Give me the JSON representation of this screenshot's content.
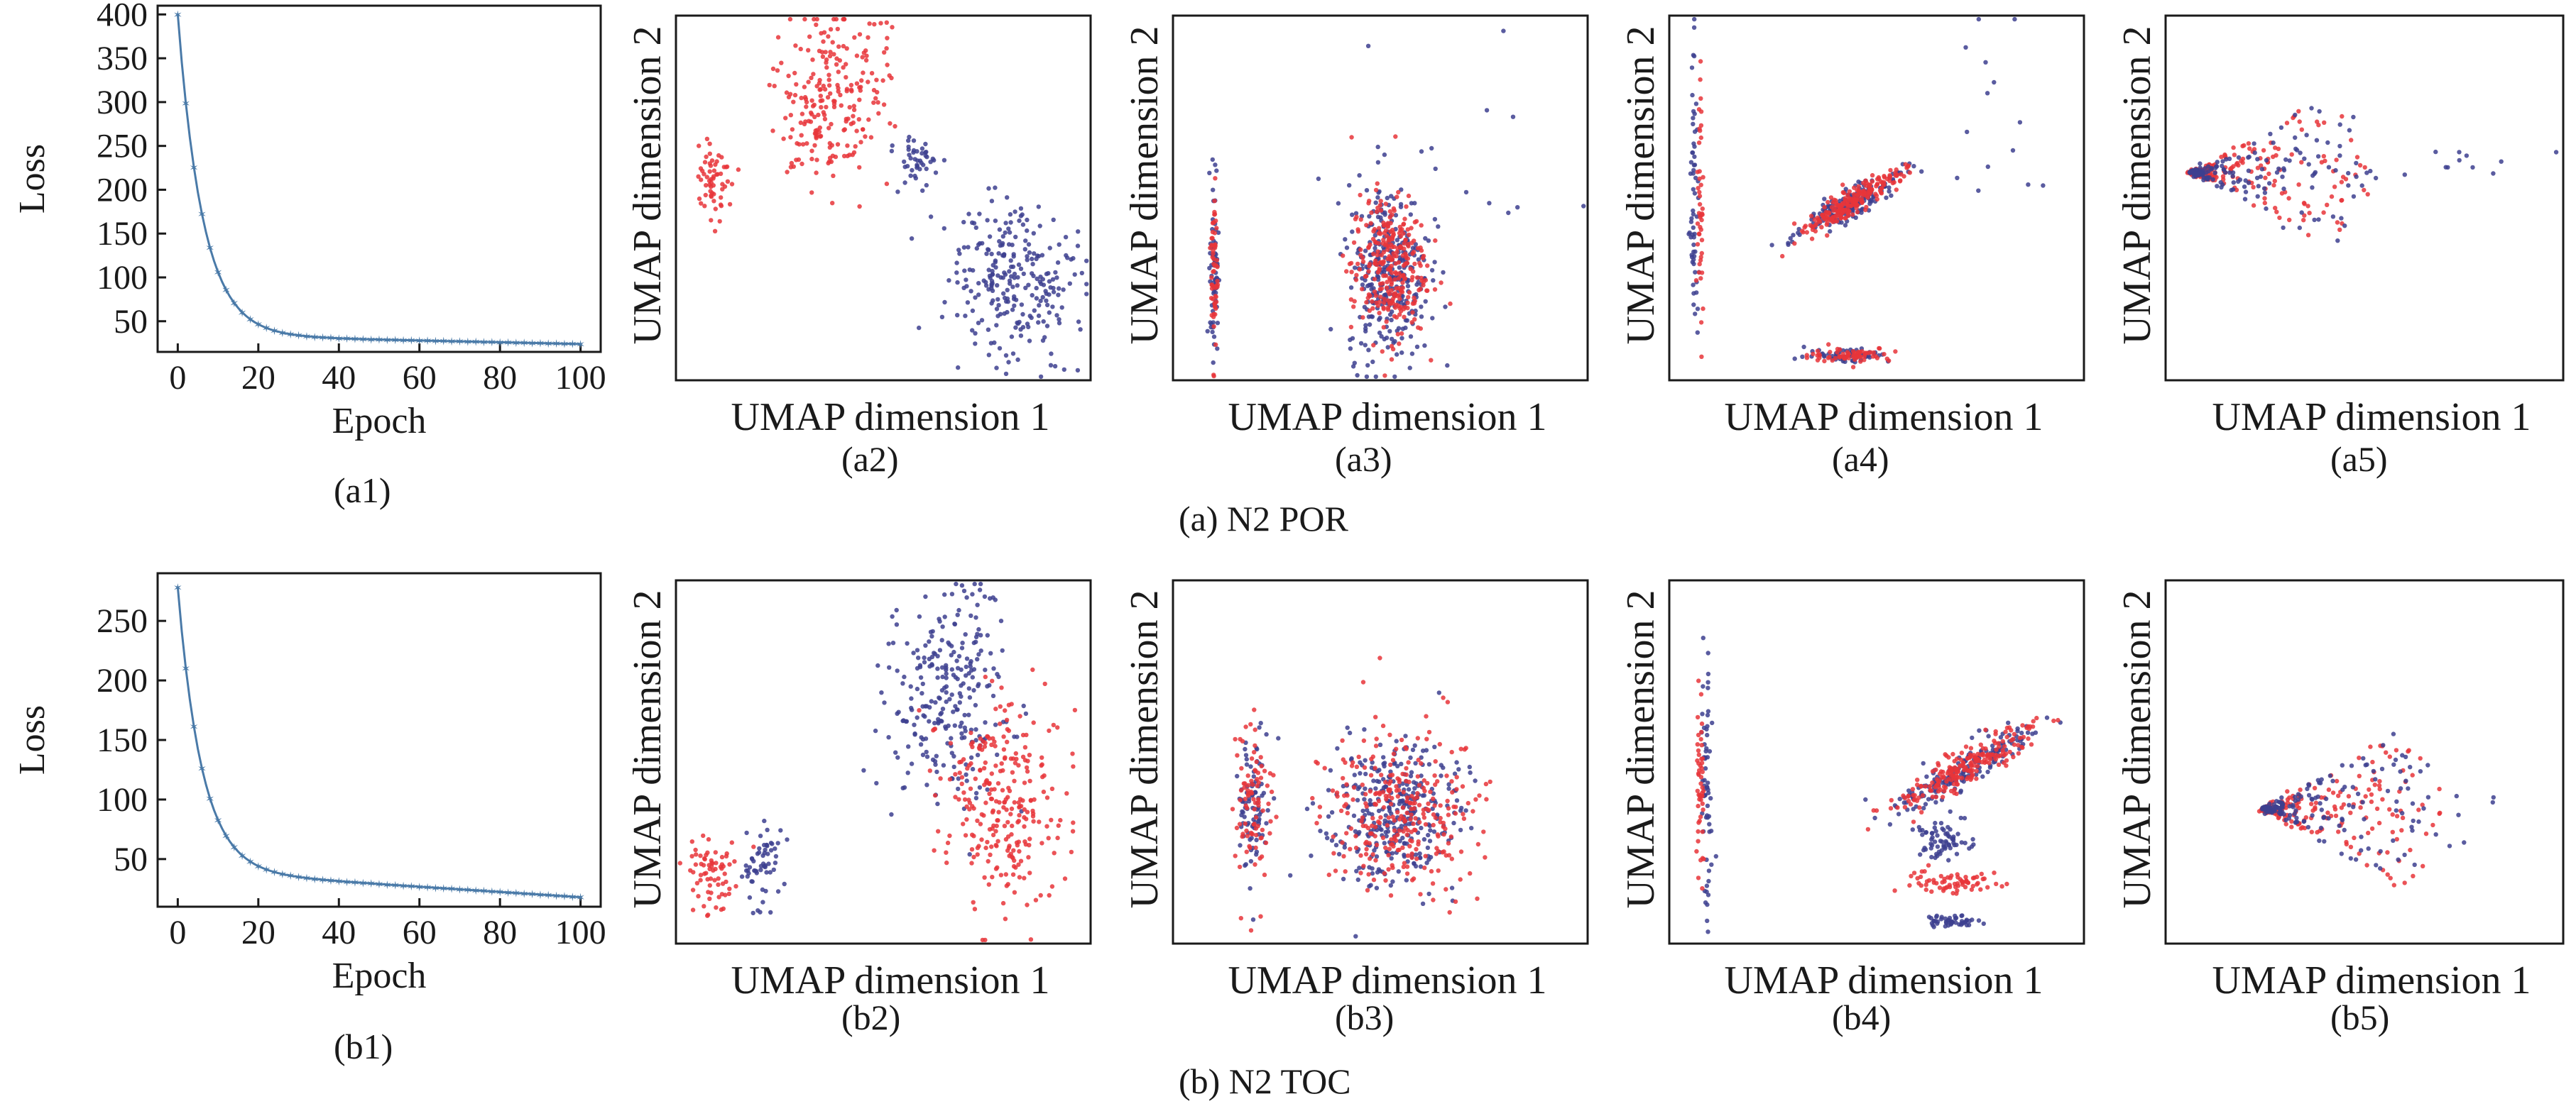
{
  "colors": {
    "loss_line": "#4a7aa8",
    "cluster_red": "#e8353a",
    "cluster_blue": "#3d3f8f",
    "axes": "#1a1a1a"
  },
  "captions": {
    "row_a": "(a) N2 POR",
    "row_b": "(b) N2 TOC",
    "a1": "(a1)",
    "a2": "(a2)",
    "a3": "(a3)",
    "a4": "(a4)",
    "a5": "(a5)",
    "b1": "(b1)",
    "b2": "(b2)",
    "b3": "(b3)",
    "b4": "(b4)",
    "b5": "(b5)"
  },
  "chart_data": [
    {
      "id": "a1",
      "type": "line",
      "xlabel": "Epoch",
      "ylabel": "Loss",
      "xlim": [
        -5,
        105
      ],
      "ylim": [
        15,
        410
      ],
      "xticks": [
        0,
        20,
        40,
        60,
        80,
        100
      ],
      "yticks": [
        50,
        100,
        150,
        200,
        250,
        300,
        350,
        400
      ],
      "loss_model": {
        "start": 400,
        "floor": 34,
        "decay": 6.2,
        "slope": 0.1,
        "epochs": 100
      },
      "marker": "star",
      "legend": "none"
    },
    {
      "id": "b1",
      "type": "line",
      "xlabel": "Epoch",
      "ylabel": "Loss",
      "xlim": [
        -5,
        105
      ],
      "ylim": [
        10,
        290
      ],
      "xticks": [
        0,
        20,
        40,
        60,
        80,
        100
      ],
      "yticks": [
        50,
        100,
        150,
        200,
        250
      ],
      "loss_model": {
        "start": 278,
        "floor": 40,
        "decay": 6.0,
        "slope": 0.22,
        "epochs": 100
      },
      "marker": "star",
      "legend": "none"
    },
    {
      "id": "a2",
      "type": "scatter",
      "xlabel": "UMAP dimension 1",
      "ylabel": "UMAP dimension 2",
      "ticks": "none",
      "clusters": [
        {
          "color": "red",
          "n": 60,
          "cx": 0.09,
          "cy": 0.54,
          "sx": 0.02,
          "sy": 0.05,
          "shape": "gauss"
        },
        {
          "color": "red",
          "n": 230,
          "cx": 0.37,
          "cy": 0.78,
          "sx": 0.07,
          "sy": 0.12,
          "shape": "gauss"
        },
        {
          "color": "blue",
          "n": 45,
          "cx": 0.58,
          "cy": 0.59,
          "sx": 0.025,
          "sy": 0.04,
          "shape": "gauss"
        },
        {
          "color": "blue",
          "n": 260,
          "cx": 0.82,
          "cy": 0.27,
          "sx": 0.08,
          "sy": 0.1,
          "shape": "gauss"
        }
      ]
    },
    {
      "id": "a3",
      "type": "scatter",
      "xlabel": "UMAP dimension 1",
      "ylabel": "UMAP dimension 2",
      "ticks": "none",
      "clusters": [
        {
          "color": "blue",
          "n": 70,
          "cx": 0.1,
          "cy": 0.33,
          "sx": 0.005,
          "sy": 0.13,
          "shape": "gauss"
        },
        {
          "color": "red",
          "n": 60,
          "cx": 0.1,
          "cy": 0.3,
          "sx": 0.004,
          "sy": 0.12,
          "shape": "gauss"
        },
        {
          "color": "blue",
          "n": 320,
          "cx": 0.52,
          "cy": 0.3,
          "sx": 0.05,
          "sy": 0.12,
          "shape": "gauss"
        },
        {
          "color": "red",
          "n": 300,
          "cx": 0.52,
          "cy": 0.31,
          "sx": 0.045,
          "sy": 0.1,
          "shape": "gauss"
        },
        {
          "color": "blue",
          "n": 14,
          "cx": 0.72,
          "cy": 0.6,
          "sx": 0.12,
          "sy": 0.15,
          "shape": "gauss"
        }
      ]
    },
    {
      "id": "a4",
      "type": "scatter",
      "xlabel": "UMAP dimension 1",
      "ylabel": "UMAP dimension 2",
      "ticks": "none",
      "clusters": [
        {
          "color": "blue",
          "n": 60,
          "cx": 0.06,
          "cy": 0.5,
          "sx": 0.005,
          "sy": 0.2,
          "shape": "gauss"
        },
        {
          "color": "red",
          "n": 45,
          "cx": 0.075,
          "cy": 0.5,
          "sx": 0.004,
          "sy": 0.16,
          "shape": "gauss"
        },
        {
          "color": "blue",
          "n": 200,
          "cx": 0.43,
          "cy": 0.48,
          "sx": 0.035,
          "sy": 0.035,
          "shape": "diag"
        },
        {
          "color": "red",
          "n": 220,
          "cx": 0.44,
          "cy": 0.49,
          "sx": 0.035,
          "sy": 0.035,
          "shape": "diag"
        },
        {
          "color": "blue",
          "n": 60,
          "cx": 0.43,
          "cy": 0.07,
          "sx": 0.05,
          "sy": 0.01,
          "shape": "gauss"
        },
        {
          "color": "red",
          "n": 70,
          "cx": 0.44,
          "cy": 0.07,
          "sx": 0.05,
          "sy": 0.01,
          "shape": "gauss"
        },
        {
          "color": "blue",
          "n": 14,
          "cx": 0.8,
          "cy": 0.7,
          "sx": 0.1,
          "sy": 0.13,
          "shape": "gauss"
        }
      ]
    },
    {
      "id": "a5",
      "type": "scatter",
      "xlabel": "UMAP dimension 1",
      "ylabel": "UMAP dimension 2",
      "ticks": "none",
      "clusters": [
        {
          "color": "red",
          "n": 200,
          "cx": 0.07,
          "cy": 0.57,
          "sx": 0.02,
          "sy": 0.01,
          "shape": "fan"
        },
        {
          "color": "blue",
          "n": 160,
          "cx": 0.07,
          "cy": 0.57,
          "sx": 0.02,
          "sy": 0.01,
          "shape": "fan"
        },
        {
          "color": "blue",
          "n": 12,
          "cx": 0.7,
          "cy": 0.6,
          "sx": 0.15,
          "sy": 0.03,
          "shape": "gauss"
        }
      ]
    },
    {
      "id": "b2",
      "type": "scatter",
      "xlabel": "UMAP dimension 1",
      "ylabel": "UMAP dimension 2",
      "ticks": "none",
      "clusters": [
        {
          "color": "red",
          "n": 70,
          "cx": 0.09,
          "cy": 0.2,
          "sx": 0.035,
          "sy": 0.05,
          "shape": "gauss"
        },
        {
          "color": "blue",
          "n": 60,
          "cx": 0.21,
          "cy": 0.22,
          "sx": 0.025,
          "sy": 0.05,
          "shape": "gauss"
        },
        {
          "color": "blue",
          "n": 260,
          "cx": 0.66,
          "cy": 0.68,
          "sx": 0.07,
          "sy": 0.15,
          "shape": "gauss"
        },
        {
          "color": "red",
          "n": 270,
          "cx": 0.78,
          "cy": 0.38,
          "sx": 0.07,
          "sy": 0.14,
          "shape": "gauss"
        }
      ]
    },
    {
      "id": "b3",
      "type": "scatter",
      "xlabel": "UMAP dimension 1",
      "ylabel": "UMAP dimension 2",
      "ticks": "none",
      "clusters": [
        {
          "color": "blue",
          "n": 90,
          "cx": 0.19,
          "cy": 0.38,
          "sx": 0.02,
          "sy": 0.09,
          "shape": "gauss"
        },
        {
          "color": "red",
          "n": 90,
          "cx": 0.19,
          "cy": 0.37,
          "sx": 0.025,
          "sy": 0.1,
          "shape": "gauss"
        },
        {
          "color": "blue",
          "n": 330,
          "cx": 0.53,
          "cy": 0.36,
          "sx": 0.08,
          "sy": 0.1,
          "shape": "gauss"
        },
        {
          "color": "red",
          "n": 300,
          "cx": 0.55,
          "cy": 0.37,
          "sx": 0.09,
          "sy": 0.11,
          "shape": "gauss"
        }
      ]
    },
    {
      "id": "b4",
      "type": "scatter",
      "xlabel": "UMAP dimension 1",
      "ylabel": "UMAP dimension 2",
      "ticks": "none",
      "clusters": [
        {
          "color": "blue",
          "n": 60,
          "cx": 0.09,
          "cy": 0.45,
          "sx": 0.006,
          "sy": 0.2,
          "shape": "gauss"
        },
        {
          "color": "red",
          "n": 50,
          "cx": 0.075,
          "cy": 0.45,
          "sx": 0.005,
          "sy": 0.18,
          "shape": "gauss"
        },
        {
          "color": "blue",
          "n": 180,
          "cx": 0.71,
          "cy": 0.48,
          "sx": 0.05,
          "sy": 0.05,
          "shape": "diag"
        },
        {
          "color": "red",
          "n": 220,
          "cx": 0.72,
          "cy": 0.49,
          "sx": 0.05,
          "sy": 0.05,
          "shape": "diag"
        },
        {
          "color": "blue",
          "n": 70,
          "cx": 0.66,
          "cy": 0.28,
          "sx": 0.035,
          "sy": 0.03,
          "shape": "gauss"
        },
        {
          "color": "red",
          "n": 70,
          "cx": 0.68,
          "cy": 0.17,
          "sx": 0.06,
          "sy": 0.015,
          "shape": "gauss"
        },
        {
          "color": "blue",
          "n": 50,
          "cx": 0.68,
          "cy": 0.06,
          "sx": 0.03,
          "sy": 0.008,
          "shape": "gauss"
        }
      ]
    },
    {
      "id": "b5",
      "type": "scatter",
      "xlabel": "UMAP dimension 1",
      "ylabel": "UMAP dimension 2",
      "ticks": "none",
      "clusters": [
        {
          "color": "red",
          "n": 220,
          "cx": 0.25,
          "cy": 0.37,
          "sx": 0.02,
          "sy": 0.01,
          "shape": "fan"
        },
        {
          "color": "blue",
          "n": 170,
          "cx": 0.25,
          "cy": 0.37,
          "sx": 0.02,
          "sy": 0.01,
          "shape": "fan"
        },
        {
          "color": "blue",
          "n": 10,
          "cx": 0.75,
          "cy": 0.35,
          "sx": 0.1,
          "sy": 0.1,
          "shape": "gauss"
        }
      ]
    }
  ]
}
